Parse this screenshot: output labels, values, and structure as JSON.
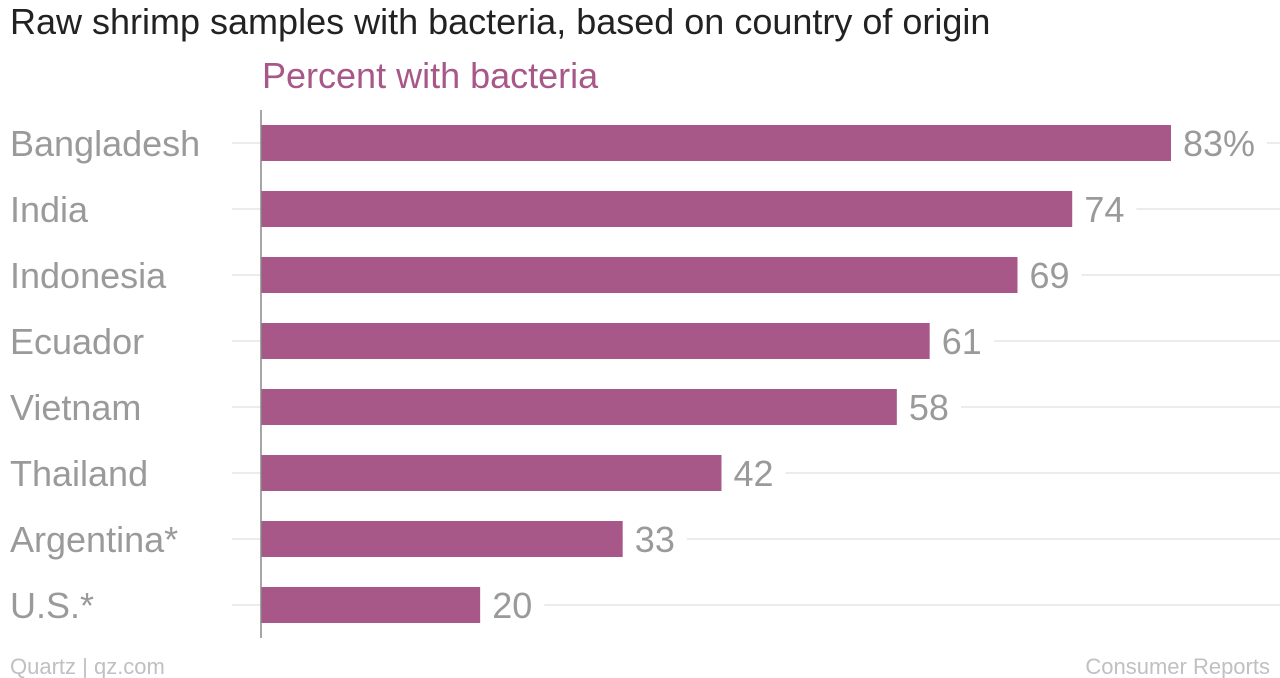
{
  "chart_data": {
    "type": "bar",
    "orientation": "horizontal",
    "title": "Raw shrimp samples with bacteria, based on country of origin",
    "series": [
      {
        "name": "Percent with bacteria",
        "values": [
          83,
          74,
          69,
          61,
          58,
          42,
          33,
          20
        ]
      }
    ],
    "categories": [
      "Bangladesh",
      "India",
      "Indonesia",
      "Ecuador",
      "Vietnam",
      "Thailand",
      "Argentina*",
      "U.S.*"
    ],
    "data_labels": [
      "83%",
      "74",
      "69",
      "61",
      "58",
      "42",
      "33",
      "20"
    ],
    "xlim": [
      0,
      83
    ],
    "grid": true,
    "colors": {
      "bar": "#a85888",
      "series_label": "#a85888",
      "category_label": "#9a9a9a",
      "value_label": "#9a9a9a",
      "gridline": "#ececec",
      "axis": "#888888"
    }
  },
  "footer": {
    "credit": "Quartz | qz.com",
    "source": "Consumer Reports"
  }
}
